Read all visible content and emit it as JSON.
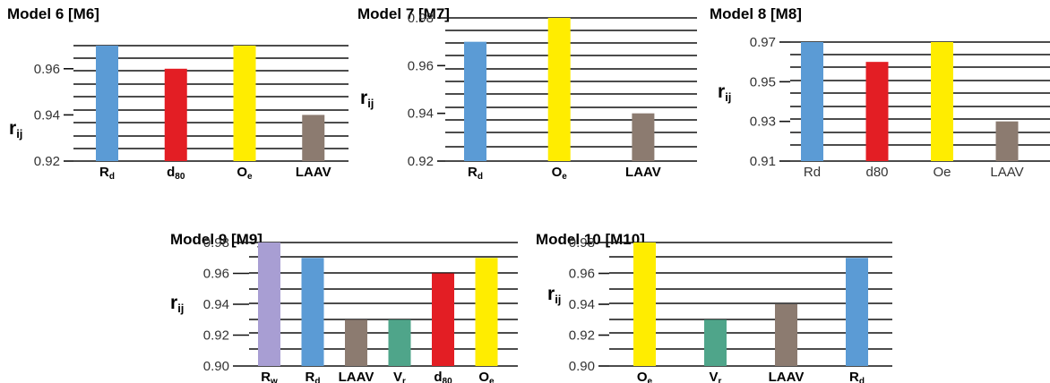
{
  "chart_data": [
    {
      "type": "bar",
      "title": "Model 6 [M6]",
      "ylabel": "r_ij",
      "categories": [
        "Rd",
        "d80",
        "Oe",
        "LAAV"
      ],
      "values": [
        0.97,
        0.96,
        0.97,
        0.94
      ],
      "colors": [
        "#5b9bd5",
        "#e31e24",
        "#ffed00",
        "#8c7b70"
      ],
      "ylim": [
        0.92,
        0.97
      ],
      "yticks": [
        0.92,
        0.94,
        0.96
      ],
      "ytick_labels": [
        "0.92",
        "0.94",
        "0.96"
      ],
      "grid": true,
      "legend": "none"
    },
    {
      "type": "bar",
      "title": "Model 7 [M7]",
      "ylabel": "r_ij",
      "categories": [
        "Rd",
        "Oe",
        "LAAV"
      ],
      "values": [
        0.97,
        0.98,
        0.94
      ],
      "colors": [
        "#5b9bd5",
        "#ffed00",
        "#8c7b70"
      ],
      "ylim": [
        0.92,
        0.98
      ],
      "yticks": [
        0.92,
        0.94,
        0.96,
        0.98
      ],
      "ytick_labels": [
        "0.92",
        "0.94",
        "0.96",
        "0.98"
      ],
      "grid": true,
      "legend": "none"
    },
    {
      "type": "bar",
      "title": "Model 8 [M8]",
      "ylabel": "r_ij",
      "categories": [
        "Rd",
        "d80",
        "Oe",
        "LAAV"
      ],
      "values": [
        0.97,
        0.96,
        0.97,
        0.93
      ],
      "colors": [
        "#5b9bd5",
        "#e31e24",
        "#ffed00",
        "#8c7b70"
      ],
      "ylim": [
        0.91,
        0.97
      ],
      "yticks": [
        0.91,
        0.93,
        0.95,
        0.97
      ],
      "ytick_labels": [
        "0.91",
        "0.93",
        "0.95",
        "0.97"
      ],
      "grid": true,
      "legend": "none"
    },
    {
      "type": "bar",
      "title": "Model 9 [M9]",
      "ylabel": "r_ij",
      "categories": [
        "Rw",
        "Rd",
        "LAAV",
        "Vr",
        "d80",
        "Oe"
      ],
      "values": [
        0.98,
        0.97,
        0.93,
        0.93,
        0.96,
        0.97
      ],
      "colors": [
        "#a89ed3",
        "#5b9bd5",
        "#8c7b70",
        "#4fa58a",
        "#e31e24",
        "#ffed00"
      ],
      "ylim": [
        0.9,
        0.98
      ],
      "yticks": [
        0.9,
        0.92,
        0.94,
        0.96,
        0.98
      ],
      "ytick_labels": [
        "0.90",
        "0.92",
        "0.94",
        "0.96",
        "0.98"
      ],
      "grid": true,
      "legend": "none"
    },
    {
      "type": "bar",
      "title": "Model 10 [M10]",
      "ylabel": "r_ij",
      "categories": [
        "Oe",
        "Vr",
        "LAAV",
        "Rd"
      ],
      "values": [
        0.98,
        0.93,
        0.94,
        0.97
      ],
      "colors": [
        "#ffed00",
        "#4fa58a",
        "#8c7b70",
        "#5b9bd5"
      ],
      "ylim": [
        0.9,
        0.98
      ],
      "yticks": [
        0.9,
        0.92,
        0.94,
        0.96,
        0.98
      ],
      "ytick_labels": [
        "0.90",
        "0.92",
        "0.94",
        "0.96",
        "0.98"
      ],
      "grid": true,
      "legend": "none"
    }
  ]
}
